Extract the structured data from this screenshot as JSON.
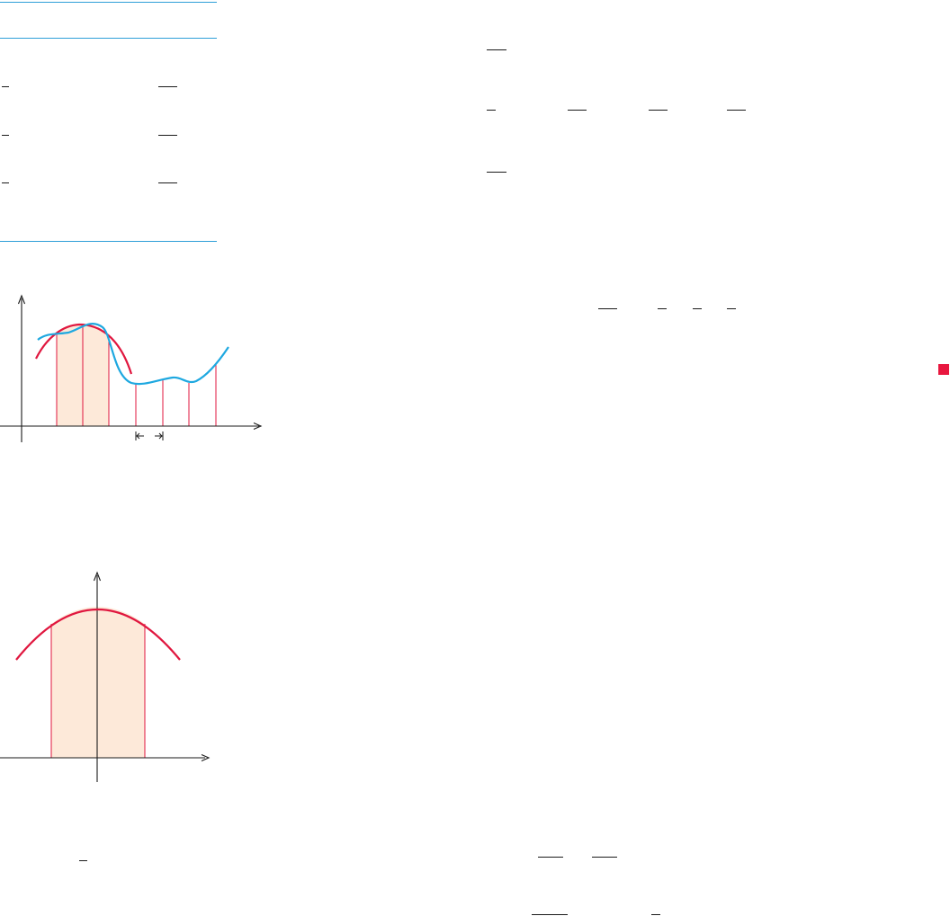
{
  "colors": {
    "rule_blue": "#2f9fd8",
    "curve_red": "#e0173f",
    "curve_blue": "#1ea8e0",
    "shade_fill": "#fde9d9",
    "bullet_red": "#e8173f",
    "axis": "#1a1a1a"
  },
  "figure_top": {
    "description_none": "",
    "shaded_strips": 2,
    "vertical_lines": 7
  },
  "figure_bottom": {
    "shaded_region": true
  },
  "end_marker_icon": "filled-square-icon"
}
